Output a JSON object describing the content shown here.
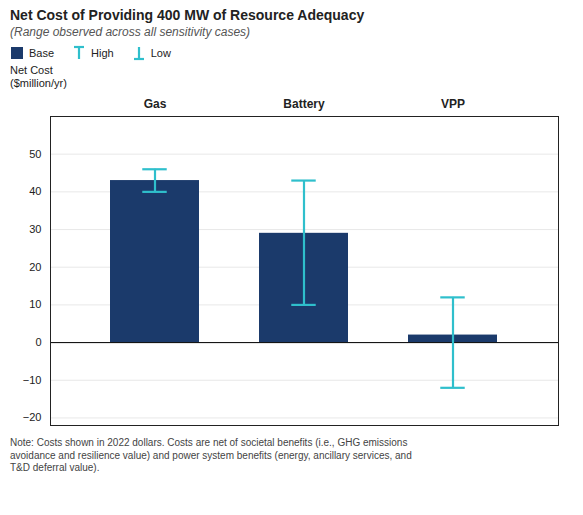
{
  "chart_data": {
    "type": "bar",
    "title": "Net Cost of Providing 400 MW of Resource Adequacy",
    "subtitle": "(Range observed across all sensitivity cases)",
    "ylabel": "Net Cost\n($million/yr)",
    "categories": [
      "Gas",
      "Battery",
      "VPP"
    ],
    "series": [
      {
        "name": "Base",
        "type": "bar",
        "color": "#1b3a6b",
        "values": [
          43,
          29,
          2
        ]
      },
      {
        "name": "High",
        "type": "errorbar",
        "color": "#2fbfcc",
        "values": [
          46,
          43,
          12
        ]
      },
      {
        "name": "Low",
        "type": "errorbar",
        "color": "#2fbfcc",
        "values": [
          40,
          10,
          -12
        ]
      }
    ],
    "ylim": [
      -22,
      60
    ],
    "yticks": [
      -20,
      -10,
      0,
      10,
      20,
      30,
      40,
      50
    ],
    "grid": true,
    "note": "Note: Costs shown in 2022 dollars. Costs are net of societal benefits (i.e., GHG emissions\navoidance and resilience value) and power system benefits (energy, ancillary services, and\nT&D deferral value)."
  }
}
